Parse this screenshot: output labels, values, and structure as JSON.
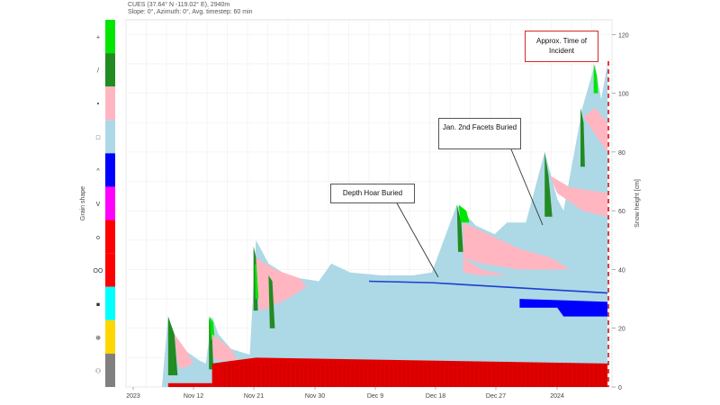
{
  "header": {
    "line1": "CUES (37.64° N -119.02° E), 2940m",
    "line2": "Slope: 0°, Azimuth: 0°, Avg. timestep: 60 min"
  },
  "chart_data": {
    "type": "area",
    "subtitle": "",
    "ylabel_right": "Snow height [cm]",
    "ylabel_left": "Grain shape",
    "ylim": [
      0,
      125
    ],
    "y_ticks": [
      0,
      20,
      40,
      60,
      80,
      100,
      120
    ],
    "x_ticks": [
      "2023",
      "Nov 12",
      "Nov 21",
      "Nov 30",
      "Dec 9",
      "Dec 18",
      "Dec 27",
      "2024"
    ],
    "grid": true,
    "grain_legend": [
      {
        "symbol": "+",
        "color": "#00e600"
      },
      {
        "symbol": "/",
        "color": "#228b22"
      },
      {
        "symbol": "•",
        "color": "#ffb6c1"
      },
      {
        "symbol": "□",
        "color": "#add8e6"
      },
      {
        "symbol": "^",
        "color": "#0000ff"
      },
      {
        "symbol": "V",
        "color": "#ff00ff"
      },
      {
        "symbol": "o",
        "color": "#ff0000"
      },
      {
        "symbol": "OO",
        "color": "#ff0000"
      },
      {
        "symbol": "■",
        "color": "#00ffff"
      },
      {
        "symbol": "⊕",
        "color": "#ffd700"
      },
      {
        "symbol": "⚇",
        "color": "#808080"
      }
    ],
    "snow_height_series": {
      "name": "Snow height",
      "x_days": [
        0,
        5,
        6,
        7,
        8,
        9,
        11,
        12,
        13,
        14,
        16,
        19,
        20,
        22,
        25,
        27,
        30,
        32,
        35,
        40,
        45,
        48,
        52,
        55,
        58,
        60,
        63,
        66,
        68,
        69,
        72,
        74,
        75,
        76
      ],
      "y": [
        0,
        0,
        24,
        18,
        14,
        12,
        9,
        8,
        24,
        18,
        13,
        11,
        50,
        42,
        38,
        37,
        36,
        42,
        39,
        38,
        38,
        39,
        62,
        55,
        52,
        56,
        56,
        80,
        64,
        60,
        95,
        110,
        98,
        110
      ]
    },
    "buried_layers": [
      {
        "name": "Depth Hoar Buried",
        "x_days": [
          38,
          48,
          60,
          76
        ],
        "y": [
          36,
          35.5,
          34,
          32
        ]
      }
    ],
    "annotations": [
      {
        "text": "Depth Hoar Buried"
      },
      {
        "text": "Jan. 2nd Facets Buried"
      },
      {
        "text": "Approx. Time of Incident"
      }
    ]
  }
}
